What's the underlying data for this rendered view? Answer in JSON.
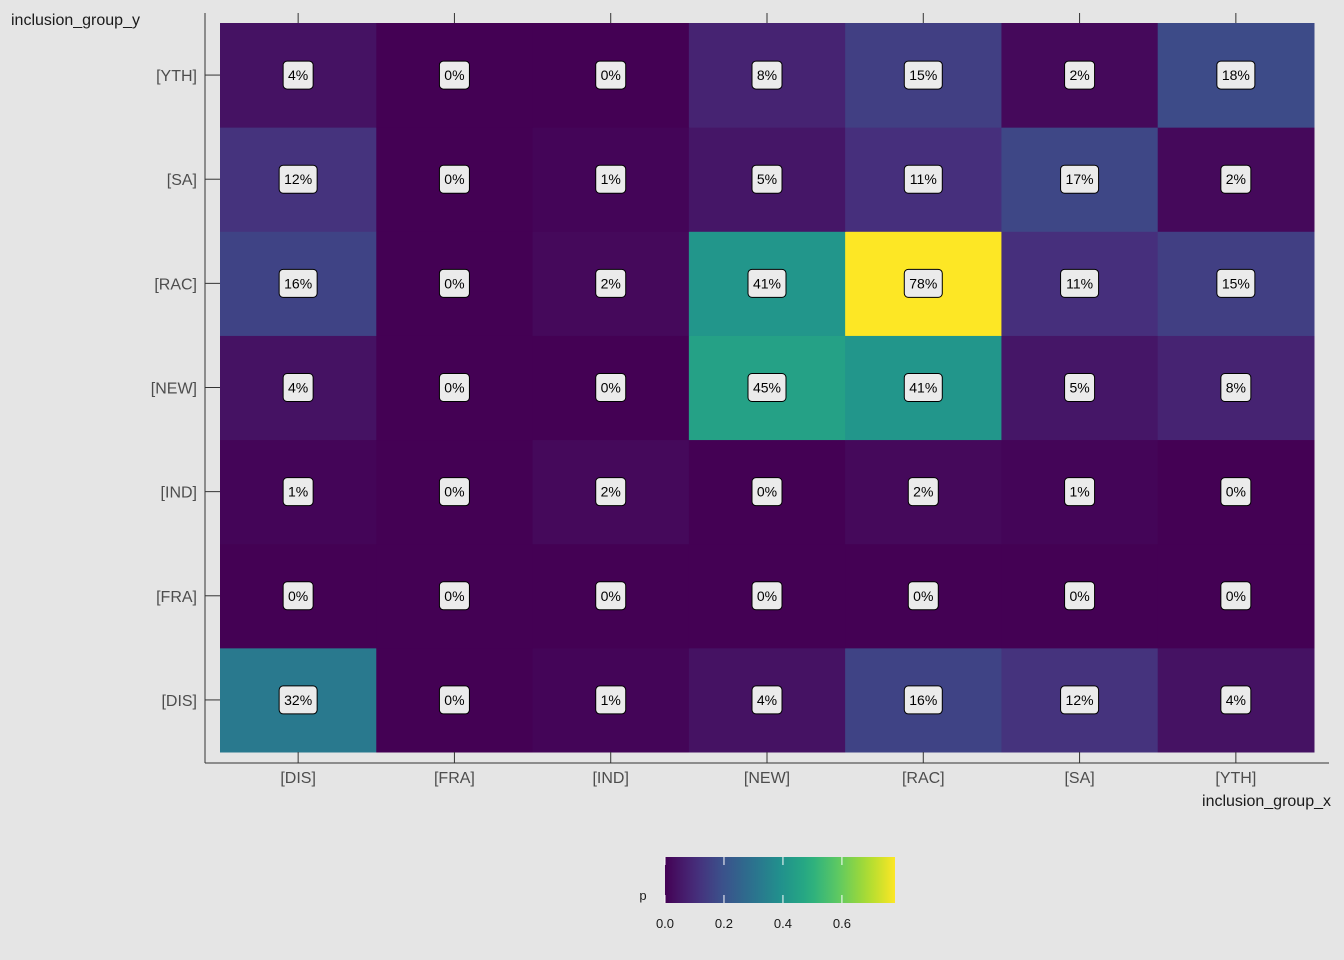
{
  "chart_data": {
    "type": "heatmap",
    "xlabel": "inclusion_group_x",
    "ylabel": "inclusion_group_y",
    "x_categories": [
      "[DIS]",
      "[FRA]",
      "[IND]",
      "[NEW]",
      "[RAC]",
      "[SA]",
      "[YTH]"
    ],
    "y_categories": [
      "[DIS]",
      "[FRA]",
      "[IND]",
      "[NEW]",
      "[RAC]",
      "[SA]",
      "[YTH]"
    ],
    "values": [
      [
        0.32,
        0.0,
        0.01,
        0.04,
        0.16,
        0.12,
        0.04
      ],
      [
        0.0,
        0.0,
        0.0,
        0.0,
        0.0,
        0.0,
        0.0
      ],
      [
        0.01,
        0.0,
        0.02,
        0.0,
        0.02,
        0.01,
        0.0
      ],
      [
        0.04,
        0.0,
        0.0,
        0.45,
        0.41,
        0.05,
        0.08
      ],
      [
        0.16,
        0.0,
        0.02,
        0.41,
        0.78,
        0.11,
        0.15
      ],
      [
        0.12,
        0.0,
        0.01,
        0.05,
        0.11,
        0.17,
        0.02
      ],
      [
        0.04,
        0.0,
        0.0,
        0.08,
        0.15,
        0.02,
        0.18
      ]
    ],
    "labels": [
      [
        "32%",
        "0%",
        "1%",
        "4%",
        "16%",
        "12%",
        "4%"
      ],
      [
        "0%",
        "0%",
        "0%",
        "0%",
        "0%",
        "0%",
        "0%"
      ],
      [
        "1%",
        "0%",
        "2%",
        "0%",
        "2%",
        "1%",
        "0%"
      ],
      [
        "4%",
        "0%",
        "0%",
        "45%",
        "41%",
        "5%",
        "8%"
      ],
      [
        "16%",
        "0%",
        "2%",
        "41%",
        "78%",
        "11%",
        "15%"
      ],
      [
        "12%",
        "0%",
        "1%",
        "5%",
        "11%",
        "17%",
        "2%"
      ],
      [
        "4%",
        "0%",
        "0%",
        "8%",
        "15%",
        "2%",
        "18%"
      ]
    ],
    "colorscale": "viridis",
    "legend": {
      "title": "p",
      "position": "bottom",
      "range": [
        0,
        0.78
      ],
      "ticks": [
        0.0,
        0.2,
        0.4,
        0.6
      ],
      "tick_labels": [
        "0.0",
        "0.2",
        "0.4",
        "0.6"
      ]
    },
    "grid": false
  }
}
